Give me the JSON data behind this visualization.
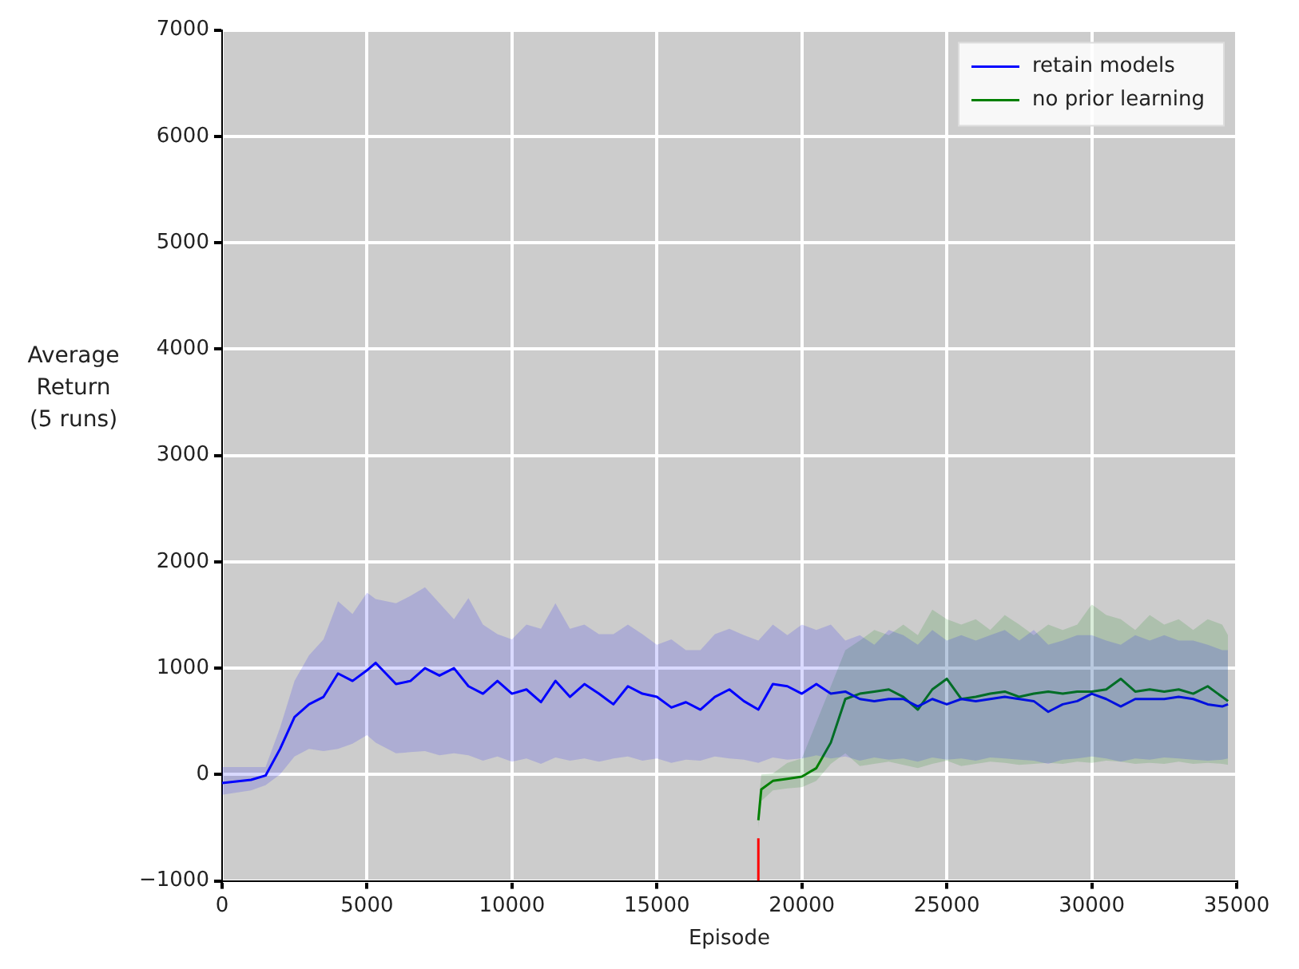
{
  "chart_data": {
    "type": "line",
    "xlabel": "Episode",
    "ylabel": "Average Return (5 runs)",
    "xlim": [
      0,
      35000
    ],
    "xticks": [
      0,
      5000,
      10000,
      15000,
      20000,
      25000,
      30000,
      35000
    ],
    "ylim": [
      -1000,
      7000
    ],
    "yticks": [
      {
        "value": -1000,
        "label": "−1000"
      },
      0,
      1000,
      2000,
      3000,
      4000,
      5000,
      6000,
      7000
    ],
    "grid": true,
    "legend": "top right",
    "series": [
      {
        "name": "retain models",
        "color": "#0000ff",
        "x": [
          0,
          1000,
          1500,
          2000,
          2500,
          3000,
          3500,
          4000,
          4500,
          5000,
          5300,
          6000,
          6500,
          7000,
          7500,
          8000,
          8500,
          9000,
          9500,
          10000,
          10500,
          11000,
          11500,
          12000,
          12500,
          13000,
          13500,
          14000,
          14500,
          15000,
          15500,
          16000,
          16500,
          17000,
          17500,
          18000,
          18500,
          19000,
          19500,
          20000,
          20500,
          21000,
          21500,
          22000,
          22500,
          23000,
          23500,
          24000,
          24500,
          25000,
          25500,
          26000,
          26500,
          27000,
          27500,
          28000,
          28500,
          29000,
          29500,
          30000,
          30500,
          31000,
          31500,
          32000,
          32500,
          33000,
          33500,
          34000,
          34500,
          34700
        ],
        "values": [
          -80,
          -50,
          -10,
          240,
          540,
          660,
          730,
          950,
          880,
          980,
          1050,
          850,
          880,
          1000,
          930,
          1000,
          830,
          760,
          880,
          760,
          800,
          680,
          880,
          730,
          850,
          760,
          660,
          830,
          760,
          730,
          630,
          680,
          610,
          730,
          800,
          690,
          610,
          850,
          830,
          760,
          850,
          760,
          780,
          710,
          690,
          710,
          710,
          640,
          710,
          660,
          710,
          690,
          710,
          730,
          710,
          690,
          590,
          660,
          690,
          760,
          710,
          640,
          710,
          710,
          710,
          730,
          710,
          660,
          640,
          660
        ],
        "lower": [
          -190,
          -150,
          -100,
          0,
          170,
          240,
          220,
          240,
          290,
          370,
          300,
          200,
          210,
          220,
          180,
          200,
          180,
          130,
          170,
          120,
          150,
          100,
          160,
          130,
          150,
          120,
          150,
          170,
          130,
          150,
          110,
          140,
          130,
          170,
          150,
          140,
          110,
          160,
          140,
          150,
          180,
          150,
          170,
          130,
          160,
          140,
          150,
          120,
          160,
          140,
          150,
          130,
          160,
          150,
          140,
          130,
          100,
          140,
          150,
          170,
          150,
          120,
          150,
          140,
          160,
          150,
          140,
          130,
          140,
          150
        ],
        "upper": [
          70,
          70,
          70,
          440,
          880,
          1120,
          1270,
          1630,
          1510,
          1710,
          1650,
          1610,
          1680,
          1760,
          1610,
          1460,
          1660,
          1410,
          1320,
          1270,
          1410,
          1370,
          1610,
          1370,
          1410,
          1320,
          1320,
          1410,
          1320,
          1220,
          1270,
          1170,
          1170,
          1320,
          1370,
          1310,
          1260,
          1410,
          1310,
          1410,
          1360,
          1410,
          1260,
          1310,
          1220,
          1360,
          1310,
          1220,
          1360,
          1260,
          1310,
          1260,
          1310,
          1360,
          1260,
          1360,
          1220,
          1260,
          1310,
          1310,
          1260,
          1220,
          1310,
          1260,
          1310,
          1260,
          1260,
          1220,
          1170,
          1170
        ]
      },
      {
        "name": "no prior learning",
        "color": "#008000",
        "x": [
          18500,
          18600,
          19000,
          19500,
          20000,
          20500,
          21000,
          21500,
          22000,
          22500,
          23000,
          23500,
          24000,
          24500,
          25000,
          25500,
          26000,
          26500,
          27000,
          27500,
          28000,
          28500,
          29000,
          29500,
          30000,
          30500,
          31000,
          31500,
          32000,
          32500,
          33000,
          33500,
          34000,
          34500,
          34700
        ],
        "values": [
          -430,
          -140,
          -60,
          -40,
          -20,
          60,
          300,
          710,
          760,
          780,
          800,
          730,
          610,
          800,
          900,
          710,
          730,
          760,
          780,
          730,
          760,
          780,
          760,
          780,
          780,
          800,
          900,
          780,
          800,
          780,
          800,
          760,
          830,
          730,
          690
        ],
        "lower": [
          -500,
          -250,
          -150,
          -130,
          -120,
          -60,
          100,
          200,
          80,
          100,
          120,
          90,
          60,
          100,
          130,
          80,
          100,
          120,
          110,
          90,
          100,
          110,
          100,
          120,
          110,
          130,
          120,
          100,
          110,
          100,
          120,
          100,
          110,
          100,
          90
        ],
        "upper": [
          -300,
          0,
          10,
          110,
          150,
          490,
          830,
          1170,
          1260,
          1360,
          1310,
          1410,
          1310,
          1550,
          1460,
          1410,
          1460,
          1360,
          1500,
          1410,
          1310,
          1410,
          1360,
          1410,
          1600,
          1500,
          1460,
          1360,
          1500,
          1410,
          1460,
          1360,
          1460,
          1410,
          1310
        ]
      },
      {
        "color": "#ff0000",
        "x": [
          18500,
          18500
        ],
        "values": [
          -1000,
          -600
        ]
      }
    ]
  }
}
